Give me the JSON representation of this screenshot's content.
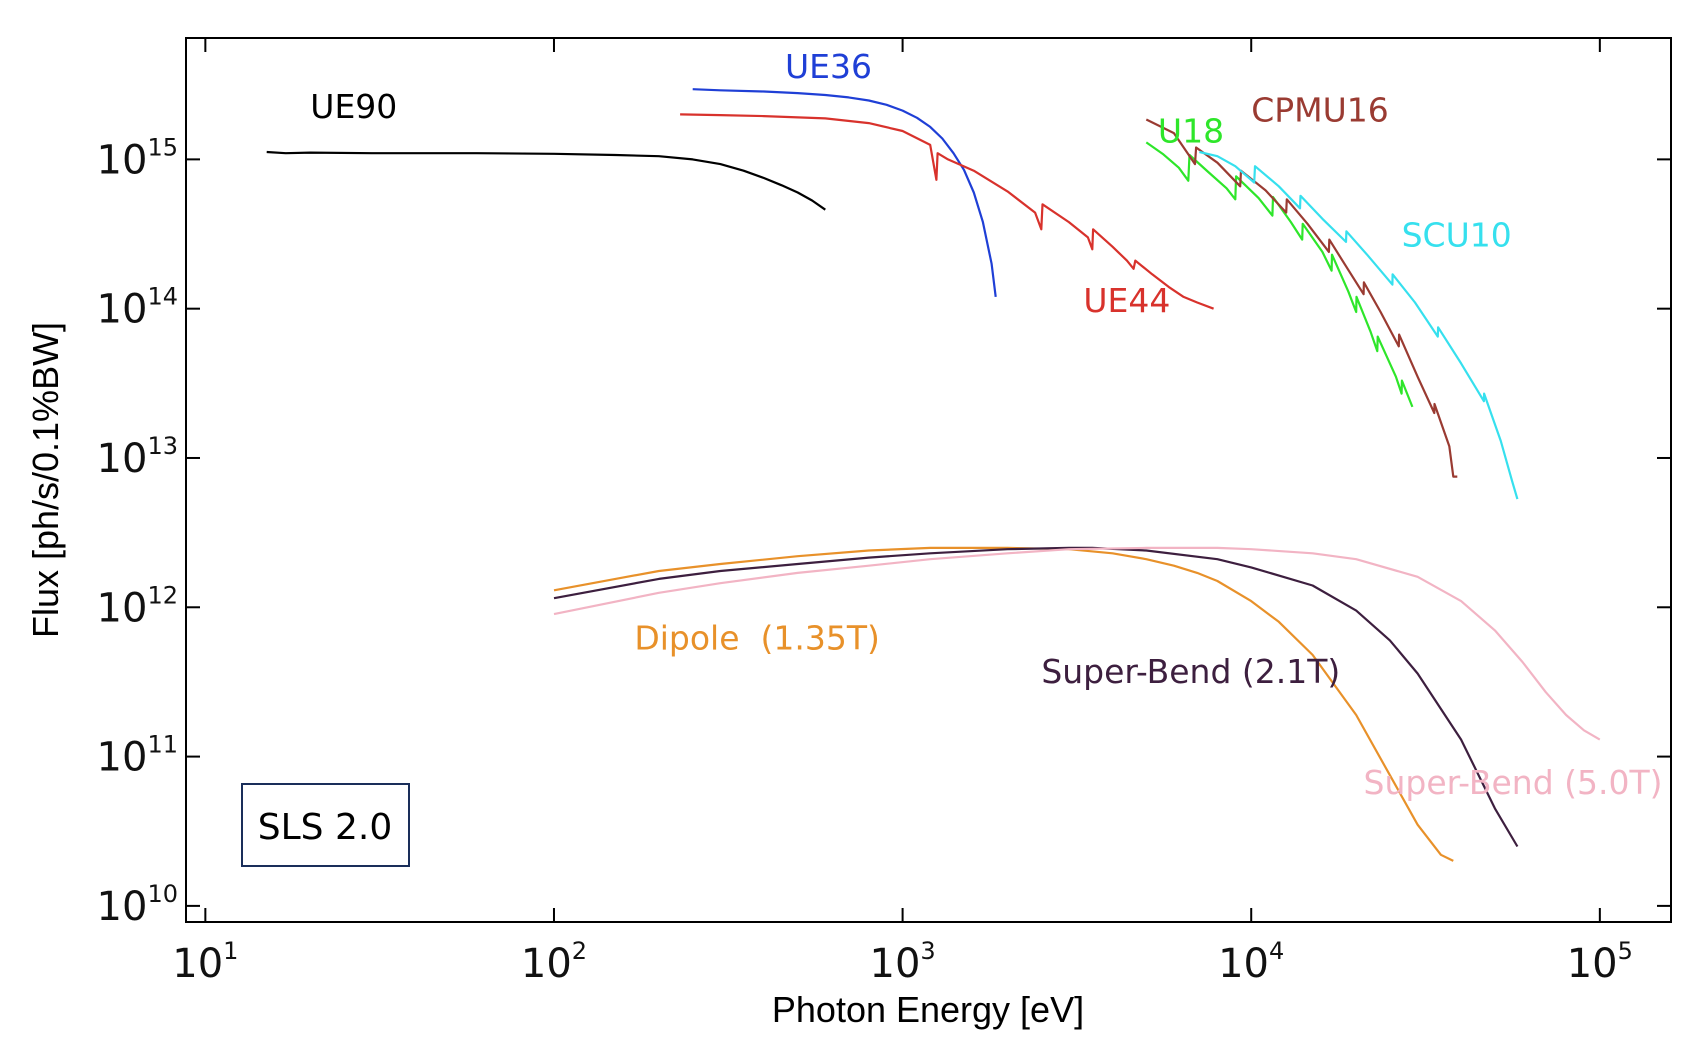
{
  "chart_data": {
    "type": "line",
    "title": "",
    "xlabel": "Photon Energy [eV]",
    "ylabel": "Flux [ph/s/0.1%BW]",
    "xscale": "log",
    "yscale": "log",
    "xlim": [
      8.8,
      160000
    ],
    "ylim": [
      7800000000.0,
      6500000000000000.0
    ],
    "xticks": [
      {
        "value": 10,
        "base": "10",
        "exp": "1"
      },
      {
        "value": 100,
        "base": "10",
        "exp": "2"
      },
      {
        "value": 1000,
        "base": "10",
        "exp": "3"
      },
      {
        "value": 10000,
        "base": "10",
        "exp": "4"
      },
      {
        "value": 100000,
        "base": "10",
        "exp": "5"
      }
    ],
    "yticks": [
      {
        "value": 10000000000.0,
        "base": "10",
        "exp": "10"
      },
      {
        "value": 100000000000.0,
        "base": "10",
        "exp": "11"
      },
      {
        "value": 1000000000000.0,
        "base": "10",
        "exp": "12"
      },
      {
        "value": 10000000000000.0,
        "base": "10",
        "exp": "13"
      },
      {
        "value": 100000000000000.0,
        "base": "10",
        "exp": "14"
      },
      {
        "value": 1000000000000000.0,
        "base": "10",
        "exp": "15"
      }
    ],
    "grid": false,
    "badge": "SLS 2.0",
    "series": [
      {
        "name": "UE90",
        "color": "#000000",
        "label_pos": [
          20,
          1900000000000000.0
        ],
        "x": [
          15,
          17,
          20,
          30,
          60,
          100,
          150,
          200,
          250,
          300,
          350,
          400,
          450,
          500,
          550,
          600
        ],
        "y": [
          1120000000000000.0,
          1100000000000000.0,
          1110000000000000.0,
          1100000000000000.0,
          1100000000000000.0,
          1090000000000000.0,
          1070000000000000.0,
          1050000000000000.0,
          1000000000000000.0,
          930000000000000.0,
          840000000000000.0,
          750000000000000.0,
          670000000000000.0,
          600000000000000.0,
          530000000000000.0,
          460000000000000.0
        ]
      },
      {
        "name": "UE36",
        "color": "#1f3fd6",
        "label_pos": [
          460,
          3500000000000000.0
        ],
        "x": [
          250,
          300,
          400,
          500,
          600,
          700,
          800,
          900,
          1000,
          1100,
          1200,
          1300,
          1400,
          1500,
          1600,
          1700,
          1800,
          1850
        ],
        "y": [
          2950000000000000.0,
          2900000000000000.0,
          2850000000000000.0,
          2780000000000000.0,
          2700000000000000.0,
          2600000000000000.0,
          2480000000000000.0,
          2320000000000000.0,
          2120000000000000.0,
          1900000000000000.0,
          1650000000000000.0,
          1380000000000000.0,
          1100000000000000.0,
          850000000000000.0,
          600000000000000.0,
          380000000000000.0,
          200000000000000.0,
          120000000000000.0
        ]
      },
      {
        "name": "UE44",
        "color": "#d8322c",
        "label_pos": [
          3300,
          95000000000000.0
        ],
        "x": [
          230,
          300,
          400,
          600,
          800,
          1000,
          1200,
          1250,
          1260,
          1350,
          1600,
          2000,
          2400,
          2500,
          2520,
          3000,
          3400,
          3500,
          3520,
          4000,
          4400,
          4600,
          4650,
          5200,
          5800,
          6400,
          7000,
          7800
        ],
        "y": [
          2000000000000000.0,
          1980000000000000.0,
          1950000000000000.0,
          1880000000000000.0,
          1750000000000000.0,
          1550000000000000.0,
          1250000000000000.0,
          730000000000000.0,
          1100000000000000.0,
          1000000000000000.0,
          840000000000000.0,
          610000000000000.0,
          440000000000000.0,
          340000000000000.0,
          500000000000000.0,
          380000000000000.0,
          300000000000000.0,
          250000000000000.0,
          340000000000000.0,
          260000000000000.0,
          210000000000000.0,
          185000000000000.0,
          210000000000000.0,
          170000000000000.0,
          140000000000000.0,
          120000000000000.0,
          110000000000000.0,
          100000000000000.0
        ]
      },
      {
        "name": "U18",
        "color": "#2ee62a",
        "label_pos": [
          5400,
          1300000000000000.0
        ],
        "x": [
          5000,
          5600,
          6200,
          6600,
          6650,
          7500,
          8500,
          9000,
          9050,
          10500,
          11500,
          11550,
          13000,
          14000,
          14050,
          16000,
          17000,
          17050,
          19000,
          20000,
          20050,
          22000,
          23000,
          23050,
          26000,
          27000,
          27050,
          29000
        ],
        "y": [
          1300000000000000.0,
          1080000000000000.0,
          880000000000000.0,
          720000000000000.0,
          1070000000000000.0,
          830000000000000.0,
          640000000000000.0,
          540000000000000.0,
          770000000000000.0,
          550000000000000.0,
          420000000000000.0,
          560000000000000.0,
          380000000000000.0,
          290000000000000.0,
          370000000000000.0,
          240000000000000.0,
          180000000000000.0,
          230000000000000.0,
          130000000000000.0,
          95000000000000.0,
          120000000000000.0,
          70000000000000.0,
          52000000000000.0,
          65000000000000.0,
          35000000000000.0,
          27000000000000.0,
          33000000000000.0,
          22000000000000.0
        ]
      },
      {
        "name": "CPMU16",
        "color": "#9a3b32",
        "label_pos": [
          10000,
          1800000000000000.0
        ],
        "x": [
          5000,
          6000,
          6900,
          6950,
          8000,
          9300,
          9350,
          11000,
          12600,
          12650,
          14500,
          16700,
          16750,
          18500,
          21000,
          21050,
          23500,
          26500,
          26550,
          30000,
          33500,
          33550,
          37000,
          38000,
          39000
        ],
        "y": [
          1850000000000000.0,
          1500000000000000.0,
          930000000000000.0,
          1200000000000000.0,
          950000000000000.0,
          660000000000000.0,
          840000000000000.0,
          620000000000000.0,
          440000000000000.0,
          540000000000000.0,
          370000000000000.0,
          240000000000000.0,
          290000000000000.0,
          200000000000000.0,
          125000000000000.0,
          150000000000000.0,
          95000000000000.0,
          56000000000000.0,
          67000000000000.0,
          35000000000000.0,
          20000000000000.0,
          23000000000000.0,
          12000000000000.0,
          7500000000000.0,
          7500000000000.0
        ]
      },
      {
        "name": "SCU10",
        "color": "#36e0ee",
        "label_pos": [
          27000,
          260000000000000.0
        ],
        "x": [
          7100,
          8000,
          9000,
          10200,
          10250,
          12000,
          13800,
          13850,
          16000,
          18700,
          18750,
          21500,
          25400,
          25450,
          29500,
          34300,
          34350,
          40000,
          46500,
          46550,
          52000,
          56000,
          58000
        ],
        "y": [
          1120000000000000.0,
          1050000000000000.0,
          900000000000000.0,
          700000000000000.0,
          900000000000000.0,
          660000000000000.0,
          470000000000000.0,
          570000000000000.0,
          400000000000000.0,
          280000000000000.0,
          330000000000000.0,
          230000000000000.0,
          145000000000000.0,
          170000000000000.0,
          110000000000000.0,
          65000000000000.0,
          75000000000000.0,
          43000000000000.0,
          24000000000000.0,
          27000000000000.0,
          13000000000000.0,
          7000000000000.0,
          5300000000000.0
        ]
      },
      {
        "name": "Dipole  (1.35T)",
        "color": "#e8912a",
        "label_pos": [
          170,
          520000000000.0
        ],
        "x": [
          100,
          150,
          200,
          300,
          500,
          800,
          1200,
          2000,
          3000,
          4000,
          5000,
          6000,
          7000,
          8000,
          10000,
          12000,
          15000,
          20000,
          25000,
          30000,
          35000,
          38000
        ],
        "y": [
          1300000000000.0,
          1550000000000.0,
          1750000000000.0,
          1950000000000.0,
          2200000000000.0,
          2400000000000.0,
          2500000000000.0,
          2500000000000.0,
          2450000000000.0,
          2300000000000.0,
          2100000000000.0,
          1900000000000.0,
          1700000000000.0,
          1500000000000.0,
          1100000000000.0,
          800000000000.0,
          480000000000.0,
          190000000000.0,
          75000000000.0,
          35000000000.0,
          22000000000.0,
          20000000000.0
        ]
      },
      {
        "name": "Super-Bend (2.1T)",
        "color": "#3d1f3f",
        "label_pos": [
          2500,
          310000000000.0
        ],
        "x": [
          100,
          200,
          300,
          500,
          800,
          1200,
          2000,
          3000,
          3500,
          5000,
          8000,
          10000,
          15000,
          20000,
          25000,
          30000,
          40000,
          50000,
          58000
        ],
        "y": [
          1150000000000.0,
          1550000000000.0,
          1750000000000.0,
          1950000000000.0,
          2150000000000.0,
          2300000000000.0,
          2450000000000.0,
          2500000000000.0,
          2500000000000.0,
          2400000000000.0,
          2100000000000.0,
          1850000000000.0,
          1400000000000.0,
          950000000000.0,
          600000000000.0,
          360000000000.0,
          130000000000.0,
          45000000000.0,
          25000000000.0
        ]
      },
      {
        "name": "Super-Bend (5.0T)",
        "color": "#f2b4c4",
        "label_pos": [
          21000,
          56000000000.0
        ],
        "x": [
          100,
          200,
          300,
          500,
          800,
          1200,
          2000,
          3000,
          5000,
          8000,
          10000,
          15000,
          20000,
          30000,
          40000,
          50000,
          60000,
          70000,
          80000,
          90000,
          100000
        ],
        "y": [
          900000000000.0,
          1250000000000.0,
          1450000000000.0,
          1700000000000.0,
          1900000000000.0,
          2100000000000.0,
          2300000000000.0,
          2450000000000.0,
          2500000000000.0,
          2500000000000.0,
          2450000000000.0,
          2300000000000.0,
          2100000000000.0,
          1600000000000.0,
          1100000000000.0,
          700000000000.0,
          430000000000.0,
          270000000000.0,
          190000000000.0,
          150000000000.0,
          130000000000.0
        ]
      }
    ]
  }
}
